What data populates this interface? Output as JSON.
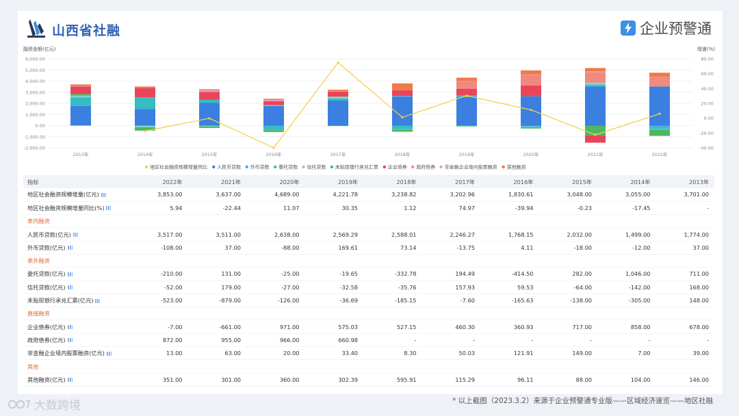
{
  "header": {
    "title": "山西省社融",
    "brand": "企业预警通"
  },
  "chart_data": {
    "type": "bar",
    "stacked": true,
    "categories": [
      "2013年",
      "2014年",
      "2015年",
      "2016年",
      "2017年",
      "2018年",
      "2019年",
      "2020年",
      "2021年",
      "2022年"
    ],
    "ylabel_left": "融资金额(亿元)",
    "ylabel_right": "增速(%)",
    "ylim_left": [
      -2000,
      6000
    ],
    "ylim_right": [
      -40,
      80
    ],
    "yticks_left": [
      "6,000.00",
      "5,000.00",
      "4,000.00",
      "3,000.00",
      "2,000.00",
      "1,000.00",
      "0.00",
      "-1,000.00",
      "-2,000.00"
    ],
    "yticks_right": [
      "80.00",
      "60.00",
      "40.00",
      "20.00",
      "0.00",
      "-20.00",
      "-40.00"
    ],
    "legend_position": "bottom",
    "series": [
      {
        "name": "人民币贷款",
        "color": "#3b7fe0",
        "values": [
          1774,
          1499,
          2032,
          1768.15,
          2246.27,
          2588.01,
          2569.29,
          2638,
          3511,
          3517
        ]
      },
      {
        "name": "外币贷款",
        "color": "#4aa6e8",
        "values": [
          37,
          -12,
          -18,
          4.11,
          -13.75,
          73.14,
          169.61,
          -88,
          37,
          -108
        ]
      },
      {
        "name": "委托贷款",
        "color": "#35bcc4",
        "values": [
          711,
          1046,
          282,
          -414.5,
          194.49,
          -332.78,
          -19.65,
          -25,
          131,
          -210
        ]
      },
      {
        "name": "信托贷款",
        "color": "#7fd6c4",
        "values": [
          168,
          -142,
          -64,
          59.53,
          157.93,
          -35.76,
          -32.58,
          -27,
          179,
          -52
        ]
      },
      {
        "name": "未贴现银行承兑汇票",
        "color": "#4cb860",
        "values": [
          148,
          -305,
          -138,
          -165.63,
          -7.6,
          -185.15,
          -36.69,
          -126,
          -879,
          -523
        ]
      },
      {
        "name": "企业债券",
        "color": "#e8455a",
        "values": [
          678,
          858,
          717,
          360.93,
          460.3,
          527.15,
          575.03,
          971,
          -661,
          -7
        ]
      },
      {
        "name": "政府债券",
        "color": "#f08a7e",
        "values": [
          null,
          null,
          null,
          null,
          null,
          null,
          660.98,
          966,
          955,
          872
        ]
      },
      {
        "name": "非金融企业境内股票融资",
        "color": "#e89abb",
        "values": [
          39,
          7,
          149,
          121.91,
          50.03,
          8.3,
          33.4,
          20,
          63,
          13
        ]
      },
      {
        "name": "其他融资",
        "color": "#f07a45",
        "values": [
          146,
          104,
          88,
          96.11,
          115.29,
          595.91,
          302.39,
          360,
          301,
          351
        ]
      }
    ],
    "line_series": {
      "name": "地区社会融资规模增量同比",
      "color": "#f2d24a",
      "values": [
        null,
        -17.45,
        -0.23,
        -39.94,
        74.97,
        1.12,
        30.35,
        11.07,
        -22.44,
        5.94
      ]
    }
  },
  "table": {
    "headers": [
      "指标",
      "2022年",
      "2021年",
      "2020年",
      "2019年",
      "2018年",
      "2017年",
      "2016年",
      "2015年",
      "2014年",
      "2013年"
    ],
    "rows": [
      {
        "label": "地区社会融资规模增量(亿元)",
        "icon": true,
        "section": false,
        "values": [
          "3,853.00",
          "3,637.00",
          "4,689.00",
          "4,221.78",
          "3,238.82",
          "3,202.96",
          "1,830.61",
          "3,048.00",
          "3,055.00",
          "3,701.00"
        ]
      },
      {
        "label": "地区社会融资规模增量同比(%)",
        "icon": true,
        "section": false,
        "values": [
          "5.94",
          "-22.44",
          "11.07",
          "30.35",
          "1.12",
          "74.97",
          "-39.94",
          "-0.23",
          "-17.45",
          "-"
        ]
      },
      {
        "label": "表内融资",
        "icon": false,
        "section": true,
        "values": [
          "",
          "",
          "",
          "",
          "",
          "",
          "",
          "",
          "",
          ""
        ]
      },
      {
        "label": "人民币贷款(亿元)",
        "icon": true,
        "section": false,
        "values": [
          "3,517.00",
          "3,511.00",
          "2,638.00",
          "2,569.29",
          "2,588.01",
          "2,246.27",
          "1,768.15",
          "2,032.00",
          "1,499.00",
          "1,774.00"
        ]
      },
      {
        "label": "外币贷款(亿元)",
        "icon": true,
        "section": false,
        "values": [
          "-108.00",
          "37.00",
          "-88.00",
          "169.61",
          "73.14",
          "-13.75",
          "4.11",
          "-18.00",
          "-12.00",
          "37.00"
        ]
      },
      {
        "label": "表外融资",
        "icon": false,
        "section": true,
        "values": [
          "",
          "",
          "",
          "",
          "",
          "",
          "",
          "",
          "",
          ""
        ]
      },
      {
        "label": "委托贷款(亿元)",
        "icon": true,
        "section": false,
        "values": [
          "-210.00",
          "131.00",
          "-25.00",
          "-19.65",
          "-332.78",
          "194.49",
          "-414.50",
          "282.00",
          "1,046.00",
          "711.00"
        ]
      },
      {
        "label": "信托贷款(亿元)",
        "icon": true,
        "section": false,
        "values": [
          "-52.00",
          "179.00",
          "-27.00",
          "-32.58",
          "-35.76",
          "157.93",
          "59.53",
          "-64.00",
          "-142.00",
          "168.00"
        ]
      },
      {
        "label": "未贴现银行承兑汇票(亿元)",
        "icon": true,
        "section": false,
        "values": [
          "-523.00",
          "-879.00",
          "-126.00",
          "-36.69",
          "-185.15",
          "-7.60",
          "-165.63",
          "-138.00",
          "-305.00",
          "148.00"
        ]
      },
      {
        "label": "直接融资",
        "icon": false,
        "section": true,
        "values": [
          "",
          "",
          "",
          "",
          "",
          "",
          "",
          "",
          "",
          ""
        ]
      },
      {
        "label": "企业债券(亿元)",
        "icon": true,
        "section": false,
        "values": [
          "-7.00",
          "-661.00",
          "971.00",
          "575.03",
          "527.15",
          "460.30",
          "360.93",
          "717.00",
          "858.00",
          "678.00"
        ]
      },
      {
        "label": "政府债券(亿元)",
        "icon": true,
        "section": false,
        "values": [
          "872.00",
          "955.00",
          "966.00",
          "660.98",
          "-",
          "-",
          "-",
          "-",
          "-",
          "-"
        ]
      },
      {
        "label": "非金融企业境内股票融资(亿元)",
        "icon": true,
        "section": false,
        "values": [
          "13.00",
          "63.00",
          "20.00",
          "33.40",
          "8.30",
          "50.03",
          "121.91",
          "149.00",
          "7.00",
          "39.00"
        ]
      },
      {
        "label": "其他",
        "icon": false,
        "section": true,
        "values": [
          "",
          "",
          "",
          "",
          "",
          "",
          "",
          "",
          "",
          ""
        ]
      },
      {
        "label": "其他融资(亿元)",
        "icon": true,
        "section": false,
        "values": [
          "351.00",
          "301.00",
          "360.00",
          "302.39",
          "595.91",
          "115.29",
          "96.11",
          "88.00",
          "104.00",
          "146.00"
        ]
      }
    ]
  },
  "footer": {
    "watermark": "大数跨境",
    "note": "* 以上截图（2023.3.2）来源于企业预警通专业版——区域经济速览——地区社融"
  }
}
